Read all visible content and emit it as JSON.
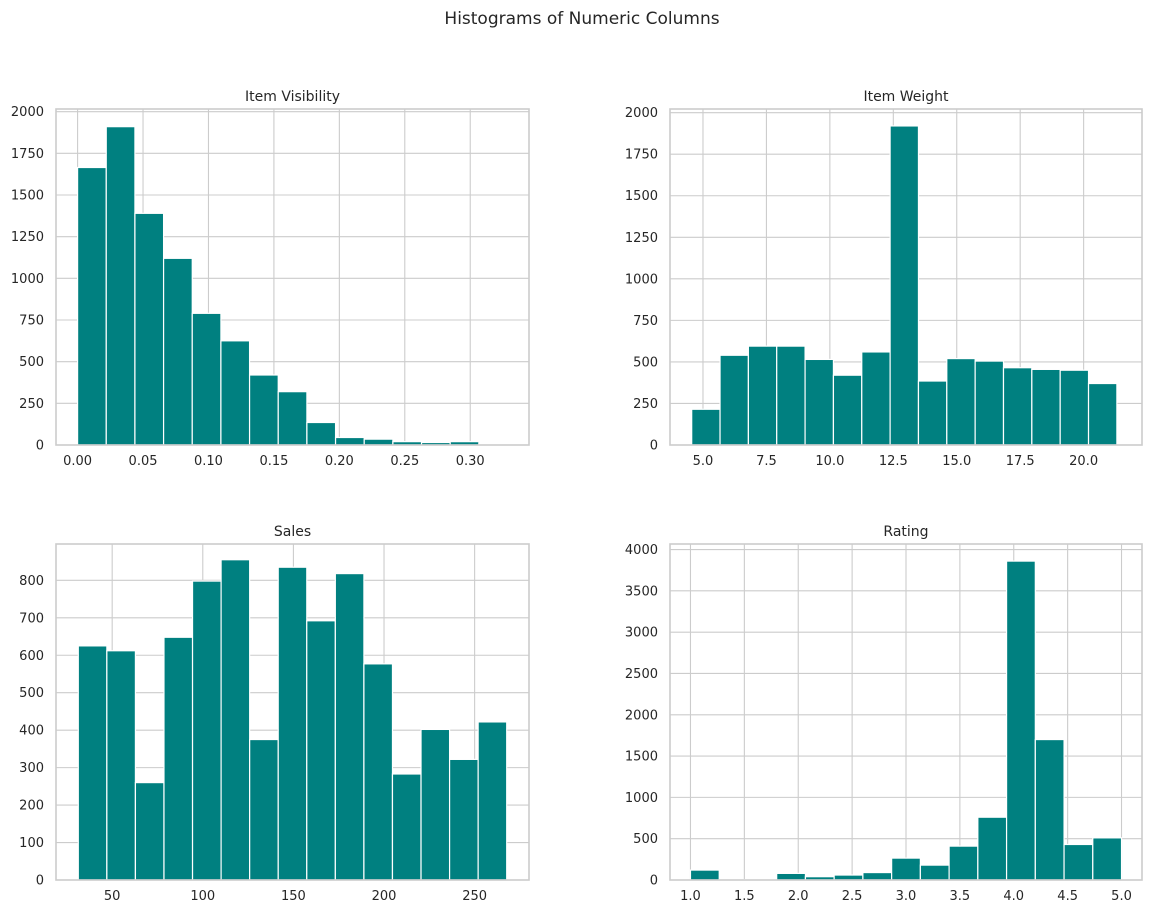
{
  "figure": {
    "title": "Histograms of Numeric Columns"
  },
  "chart_data": [
    {
      "type": "bar",
      "title": "Item Visibility",
      "xlabel": "",
      "ylabel": "",
      "bar_color": "#008080",
      "grid": true,
      "xlim": [
        -0.0165,
        0.3449
      ],
      "ylim": [
        0,
        2016
      ],
      "xticks": [
        0.0,
        0.05,
        0.1,
        0.15,
        0.2,
        0.25,
        0.3
      ],
      "xtick_labels": [
        "0.00",
        "0.05",
        "0.10",
        "0.15",
        "0.20",
        "0.25",
        "0.30"
      ],
      "yticks": [
        0,
        250,
        500,
        750,
        1000,
        1250,
        1500,
        1750,
        2000
      ],
      "yticick_labels_note": "",
      "ytick_labels": [
        "0",
        "250",
        "500",
        "750",
        "1000",
        "1250",
        "1500",
        "1750",
        "2000"
      ],
      "bin_edges": [
        0.0,
        0.0219,
        0.0438,
        0.0657,
        0.0876,
        0.1095,
        0.1314,
        0.1533,
        0.1752,
        0.1971,
        0.219,
        0.2409,
        0.2628,
        0.2847,
        0.3066,
        0.3285
      ],
      "values": [
        1665,
        1910,
        1390,
        1120,
        790,
        625,
        420,
        320,
        135,
        45,
        35,
        20,
        15,
        20,
        5
      ]
    },
    {
      "type": "bar",
      "title": "Item Weight",
      "xlabel": "",
      "ylabel": "",
      "bar_color": "#008080",
      "grid": true,
      "xlim": [
        3.7,
        22.3
      ],
      "ylim": [
        0,
        2022
      ],
      "xticks": [
        5.0,
        7.5,
        10.0,
        12.5,
        15.0,
        17.5,
        20.0
      ],
      "xtick_labels": [
        "5.0",
        "7.5",
        "10.0",
        "12.5",
        "15.0",
        "17.5",
        "20.0"
      ],
      "yticks": [
        0,
        250,
        500,
        750,
        1000,
        1250,
        1500,
        1750,
        2000
      ],
      "ytick_labels": [
        "0",
        "250",
        "500",
        "750",
        "1000",
        "1250",
        "1500",
        "1750",
        "2000"
      ],
      "bin_edges": [
        4.555,
        5.672,
        6.789,
        7.906,
        9.023,
        10.14,
        11.257,
        12.374,
        13.491,
        14.608,
        15.725,
        16.842,
        17.959,
        19.076,
        20.193,
        21.31
      ],
      "values": [
        215,
        540,
        595,
        595,
        515,
        420,
        560,
        1920,
        385,
        520,
        505,
        465,
        455,
        450,
        370
      ]
    },
    {
      "type": "bar",
      "title": "Sales",
      "xlabel": "",
      "ylabel": "",
      "bar_color": "#008080",
      "grid": true,
      "xlim": [
        19.0,
        280.0
      ],
      "ylim": [
        0,
        897
      ],
      "xticks": [
        50,
        100,
        150,
        200,
        250
      ],
      "xtick_labels": [
        "50",
        "100",
        "150",
        "200",
        "250"
      ],
      "yticks": [
        0,
        100,
        200,
        300,
        400,
        500,
        600,
        700,
        800
      ],
      "ytick_labels": [
        "0",
        "100",
        "200",
        "300",
        "400",
        "500",
        "600",
        "700",
        "800"
      ],
      "bin_edges": [
        31.3,
        47.06,
        62.82,
        78.58,
        94.34,
        110.1,
        125.86,
        141.62,
        157.38,
        173.14,
        188.9,
        204.66,
        220.42,
        236.18,
        251.94,
        267.7
      ],
      "values": [
        625,
        612,
        260,
        648,
        798,
        855,
        375,
        835,
        692,
        818,
        577,
        283,
        402,
        322,
        422
      ]
    },
    {
      "type": "bar",
      "title": "Rating",
      "xlabel": "",
      "ylabel": "",
      "bar_color": "#008080",
      "grid": true,
      "xlim": [
        0.81,
        5.19
      ],
      "ylim": [
        0,
        4067
      ],
      "xticks": [
        1.0,
        1.5,
        2.0,
        2.5,
        3.0,
        3.5,
        4.0,
        4.5,
        5.0
      ],
      "xtick_labels": [
        "1.0",
        "1.5",
        "2.0",
        "2.5",
        "3.0",
        "3.5",
        "4.0",
        "4.5",
        "5.0"
      ],
      "yticks": [
        0,
        500,
        1000,
        1500,
        2000,
        2500,
        3000,
        3500,
        4000
      ],
      "ytick_labels": [
        "0",
        "500",
        "1000",
        "1500",
        "2000",
        "2500",
        "3000",
        "3500",
        "4000"
      ],
      "bin_edges": [
        1.0,
        1.2667,
        1.5333,
        1.8,
        2.0667,
        2.3333,
        2.6,
        2.8667,
        3.1333,
        3.4,
        3.6667,
        3.9333,
        4.2,
        4.4667,
        4.7333,
        5.0
      ],
      "values": [
        120,
        5,
        10,
        80,
        40,
        60,
        90,
        265,
        180,
        410,
        760,
        3860,
        1700,
        430,
        510
      ]
    }
  ]
}
